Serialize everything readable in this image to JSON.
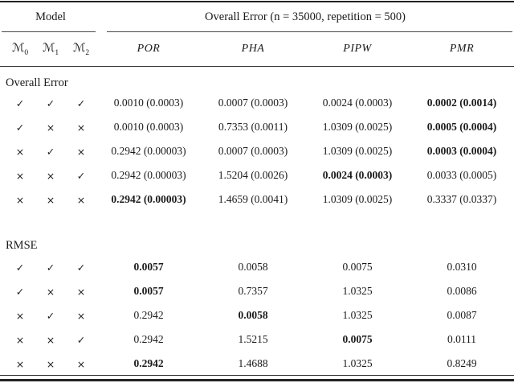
{
  "table": {
    "header": {
      "model_group": "Model",
      "error_group": "Overall Error (n = 35000, repetition = 500)",
      "model_cols": [
        {
          "symbol": "ℳ",
          "sub": "0"
        },
        {
          "symbol": "ℳ",
          "sub": "1"
        },
        {
          "symbol": "ℳ",
          "sub": "2"
        }
      ],
      "method_cols": [
        "POR",
        "PHA",
        "PIPW",
        "PMR"
      ]
    },
    "sections": [
      {
        "label": "Overall Error",
        "rows": [
          {
            "marks": [
              "✓",
              "✓",
              "✓"
            ],
            "values": [
              {
                "text": "0.0010 (0.0003)",
                "bold": false
              },
              {
                "text": "0.0007 (0.0003)",
                "bold": false
              },
              {
                "text": "0.0024 (0.0003)",
                "bold": false
              },
              {
                "text": "0.0002 (0.0014)",
                "bold": true
              }
            ]
          },
          {
            "marks": [
              "✓",
              "×",
              "×"
            ],
            "values": [
              {
                "text": "0.0010 (0.0003)",
                "bold": false
              },
              {
                "text": "0.7353 (0.0011)",
                "bold": false
              },
              {
                "text": "1.0309 (0.0025)",
                "bold": false
              },
              {
                "text": "0.0005 (0.0004)",
                "bold": true
              }
            ]
          },
          {
            "marks": [
              "×",
              "✓",
              "×"
            ],
            "values": [
              {
                "text": "0.2942 (0.00003)",
                "bold": false
              },
              {
                "text": "0.0007 (0.0003)",
                "bold": false
              },
              {
                "text": "1.0309 (0.0025)",
                "bold": false
              },
              {
                "text": "0.0003 (0.0004)",
                "bold": true
              }
            ]
          },
          {
            "marks": [
              "×",
              "×",
              "✓"
            ],
            "values": [
              {
                "text": "0.2942 (0.00003)",
                "bold": false
              },
              {
                "text": "1.5204 (0.0026)",
                "bold": false
              },
              {
                "text": "0.0024 (0.0003)",
                "bold": true
              },
              {
                "text": "0.0033 (0.0005)",
                "bold": false
              }
            ]
          },
          {
            "marks": [
              "×",
              "×",
              "×"
            ],
            "values": [
              {
                "text": "0.2942 (0.00003)",
                "bold": true
              },
              {
                "text": "1.4659 (0.0041)",
                "bold": false
              },
              {
                "text": "1.0309 (0.0025)",
                "bold": false
              },
              {
                "text": "0.3337 (0.0337)",
                "bold": false
              }
            ]
          }
        ]
      },
      {
        "label": "RMSE",
        "rows": [
          {
            "marks": [
              "✓",
              "✓",
              "✓"
            ],
            "values": [
              {
                "text": "0.0057",
                "bold": true
              },
              {
                "text": "0.0058",
                "bold": false
              },
              {
                "text": "0.0075",
                "bold": false
              },
              {
                "text": "0.0310",
                "bold": false
              }
            ]
          },
          {
            "marks": [
              "✓",
              "×",
              "×"
            ],
            "values": [
              {
                "text": "0.0057",
                "bold": true
              },
              {
                "text": "0.7357",
                "bold": false
              },
              {
                "text": "1.0325",
                "bold": false
              },
              {
                "text": "0.0086",
                "bold": false
              }
            ]
          },
          {
            "marks": [
              "×",
              "✓",
              "×"
            ],
            "values": [
              {
                "text": "0.2942",
                "bold": false
              },
              {
                "text": "0.0058",
                "bold": true
              },
              {
                "text": "1.0325",
                "bold": false
              },
              {
                "text": "0.0087",
                "bold": false
              }
            ]
          },
          {
            "marks": [
              "×",
              "×",
              "✓"
            ],
            "values": [
              {
                "text": "0.2942",
                "bold": false
              },
              {
                "text": "1.5215",
                "bold": false
              },
              {
                "text": "0.0075",
                "bold": true
              },
              {
                "text": "0.0111",
                "bold": false
              }
            ]
          },
          {
            "marks": [
              "×",
              "×",
              "×"
            ],
            "values": [
              {
                "text": "0.2942",
                "bold": true
              },
              {
                "text": "1.4688",
                "bold": false
              },
              {
                "text": "1.0325",
                "bold": false
              },
              {
                "text": "0.8249",
                "bold": false
              }
            ]
          }
        ]
      }
    ]
  }
}
